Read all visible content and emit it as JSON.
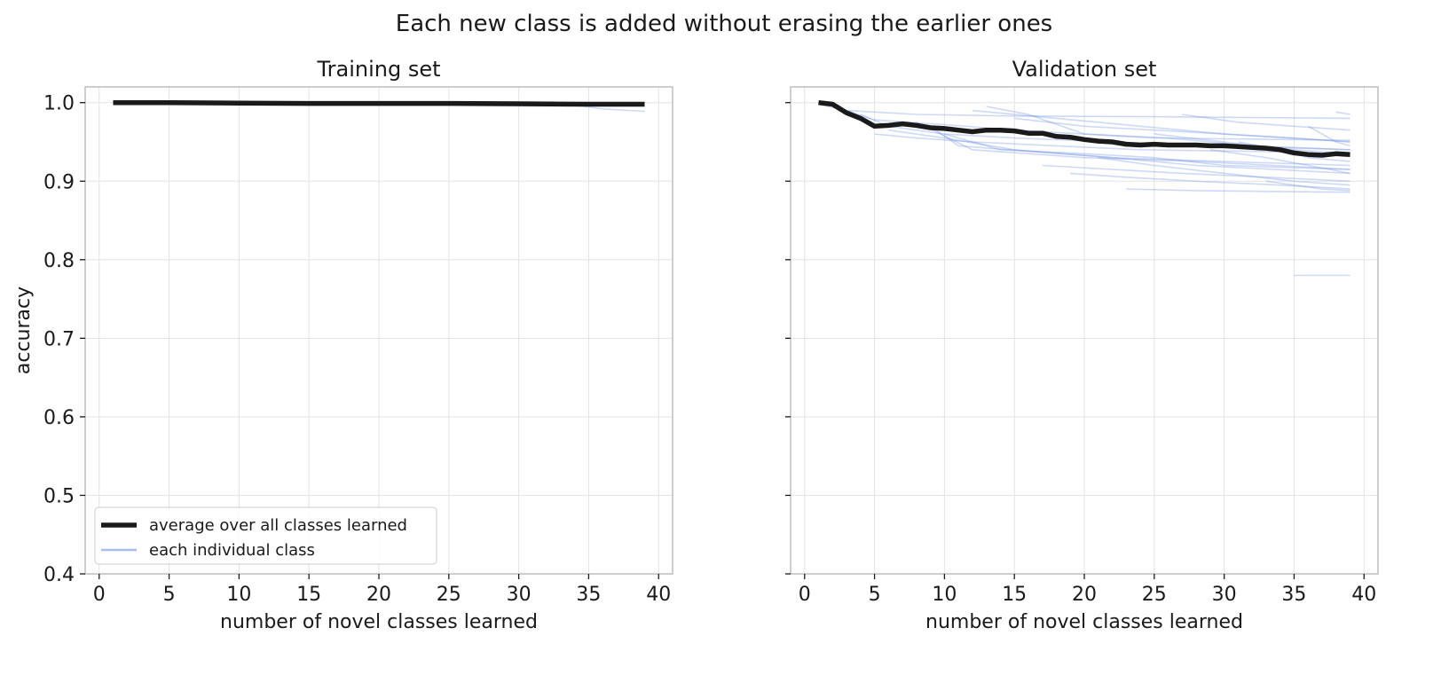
{
  "figure": {
    "title": "Each new class is added without erasing the earlier ones"
  },
  "colors": {
    "average": "#1a1a1a",
    "individual": "#6f93e6",
    "grid": "#e3e3e3",
    "frame": "#bdbdbd"
  },
  "chart_data": [
    {
      "type": "line",
      "title": "Training set",
      "xlabel": "number of novel classes learned",
      "ylabel": "accuracy",
      "xlim": [
        -1,
        41
      ],
      "ylim": [
        0.4,
        1.02
      ],
      "xticks": [
        0,
        5,
        10,
        15,
        20,
        25,
        30,
        35,
        40
      ],
      "yticks": [
        0.4,
        0.5,
        0.6,
        0.7,
        0.8,
        0.9,
        1.0
      ],
      "xtick_labels": [
        "0",
        "5",
        "10",
        "15",
        "20",
        "25",
        "30",
        "35",
        "40"
      ],
      "ytick_labels": [
        "0.4",
        "0.5",
        "0.6",
        "0.7",
        "0.8",
        "0.9",
        "1.0"
      ],
      "grid": true,
      "legend": {
        "placement": "lower-left",
        "entries": [
          "average over all classes learned",
          "each individual class"
        ]
      },
      "average": {
        "x": [
          1,
          5,
          10,
          15,
          20,
          25,
          30,
          35,
          39
        ],
        "y": [
          1.0,
          1.0,
          0.9995,
          0.999,
          0.999,
          0.999,
          0.9985,
          0.998,
          0.998
        ]
      },
      "individual": [
        {
          "x": [
            16,
            25,
            30,
            39
          ],
          "y": [
            0.997,
            0.997,
            0.996,
            0.996
          ]
        },
        {
          "x": [
            28,
            34,
            36,
            39
          ],
          "y": [
            0.998,
            0.997,
            0.992,
            0.989
          ]
        },
        {
          "x": [
            20,
            30,
            39
          ],
          "y": [
            0.999,
            0.998,
            0.997
          ]
        },
        {
          "x": [
            10,
            20,
            30,
            39
          ],
          "y": [
            1.0,
            0.999,
            0.998,
            0.998
          ]
        }
      ]
    },
    {
      "type": "line",
      "title": "Validation set",
      "xlabel": "number of novel classes learned",
      "ylabel": "",
      "xlim": [
        -1,
        41
      ],
      "ylim": [
        0.4,
        1.02
      ],
      "xticks": [
        0,
        5,
        10,
        15,
        20,
        25,
        30,
        35,
        40
      ],
      "yticks": [
        0.4,
        0.5,
        0.6,
        0.7,
        0.8,
        0.9,
        1.0
      ],
      "xtick_labels": [
        "0",
        "5",
        "10",
        "15",
        "20",
        "25",
        "30",
        "35",
        "40"
      ],
      "ytick_labels": [],
      "grid": true,
      "average": {
        "x": [
          1,
          2,
          3,
          4,
          5,
          6,
          7,
          8,
          9,
          10,
          11,
          12,
          13,
          14,
          15,
          16,
          17,
          18,
          19,
          20,
          21,
          22,
          23,
          24,
          25,
          26,
          27,
          28,
          29,
          30,
          31,
          32,
          33,
          34,
          35,
          36,
          37,
          38,
          39
        ],
        "y": [
          1.0,
          0.998,
          0.987,
          0.98,
          0.97,
          0.971,
          0.973,
          0.971,
          0.968,
          0.967,
          0.965,
          0.963,
          0.965,
          0.965,
          0.964,
          0.961,
          0.961,
          0.957,
          0.956,
          0.953,
          0.951,
          0.95,
          0.947,
          0.946,
          0.947,
          0.946,
          0.946,
          0.946,
          0.945,
          0.945,
          0.944,
          0.943,
          0.942,
          0.94,
          0.936,
          0.934,
          0.933,
          0.935,
          0.934
        ]
      },
      "individual": [
        {
          "x": [
            1,
            3,
            8,
            15,
            25,
            39
          ],
          "y": [
            0.998,
            0.99,
            0.985,
            0.983,
            0.982,
            0.98
          ]
        },
        {
          "x": [
            3,
            5,
            10,
            15,
            20,
            25,
            39
          ],
          "y": [
            0.99,
            0.978,
            0.972,
            0.965,
            0.96,
            0.955,
            0.952
          ]
        },
        {
          "x": [
            4,
            6,
            10,
            15,
            22,
            30,
            39
          ],
          "y": [
            0.985,
            0.97,
            0.96,
            0.955,
            0.95,
            0.945,
            0.94
          ]
        },
        {
          "x": [
            5,
            8,
            12,
            18,
            24,
            32,
            39
          ],
          "y": [
            0.96,
            0.955,
            0.95,
            0.945,
            0.94,
            0.938,
            0.935
          ]
        },
        {
          "x": [
            6,
            10,
            15,
            22,
            30,
            39
          ],
          "y": [
            0.965,
            0.955,
            0.94,
            0.93,
            0.925,
            0.92
          ]
        },
        {
          "x": [
            8,
            12,
            20,
            28,
            39
          ],
          "y": [
            0.975,
            0.94,
            0.93,
            0.925,
            0.915
          ]
        },
        {
          "x": [
            10,
            14,
            20,
            25,
            30,
            39
          ],
          "y": [
            0.96,
            0.94,
            0.935,
            0.93,
            0.92,
            0.915
          ]
        },
        {
          "x": [
            12,
            18,
            24,
            30,
            39
          ],
          "y": [
            0.99,
            0.98,
            0.97,
            0.96,
            0.95
          ]
        },
        {
          "x": [
            15,
            20,
            25,
            30,
            35,
            39
          ],
          "y": [
            0.98,
            0.97,
            0.965,
            0.96,
            0.955,
            0.95
          ]
        },
        {
          "x": [
            17,
            22,
            27,
            33,
            39
          ],
          "y": [
            0.92,
            0.915,
            0.91,
            0.905,
            0.9
          ]
        },
        {
          "x": [
            19,
            23,
            28,
            34,
            39
          ],
          "y": [
            0.91,
            0.905,
            0.9,
            0.895,
            0.89
          ]
        },
        {
          "x": [
            21,
            25,
            30,
            35,
            39
          ],
          "y": [
            0.93,
            0.92,
            0.91,
            0.9,
            0.895
          ]
        },
        {
          "x": [
            23,
            28,
            33,
            39
          ],
          "y": [
            0.89,
            0.888,
            0.887,
            0.886
          ]
        },
        {
          "x": [
            25,
            30,
            35,
            39
          ],
          "y": [
            0.96,
            0.95,
            0.94,
            0.935
          ]
        },
        {
          "x": [
            27,
            31,
            35,
            39
          ],
          "y": [
            0.985,
            0.975,
            0.97,
            0.965
          ]
        },
        {
          "x": [
            29,
            33,
            36,
            39
          ],
          "y": [
            0.94,
            0.93,
            0.92,
            0.91
          ]
        },
        {
          "x": [
            31,
            34,
            36,
            39
          ],
          "y": [
            0.95,
            0.94,
            0.93,
            0.925
          ]
        },
        {
          "x": [
            33,
            35,
            37,
            39
          ],
          "y": [
            0.9,
            0.895,
            0.89,
            0.888
          ]
        },
        {
          "x": [
            35,
            39
          ],
          "y": [
            0.78,
            0.78
          ]
        },
        {
          "x": [
            36,
            37,
            38,
            39
          ],
          "y": [
            0.97,
            0.96,
            0.95,
            0.945
          ]
        },
        {
          "x": [
            38,
            39
          ],
          "y": [
            0.988,
            0.985
          ]
        },
        {
          "x": [
            13,
            16,
            20,
            26,
            32,
            39
          ],
          "y": [
            0.995,
            0.985,
            0.96,
            0.955,
            0.945,
            0.94
          ]
        },
        {
          "x": [
            9,
            11,
            16,
            22,
            28,
            39
          ],
          "y": [
            0.97,
            0.945,
            0.938,
            0.93,
            0.92,
            0.91
          ]
        }
      ]
    }
  ]
}
